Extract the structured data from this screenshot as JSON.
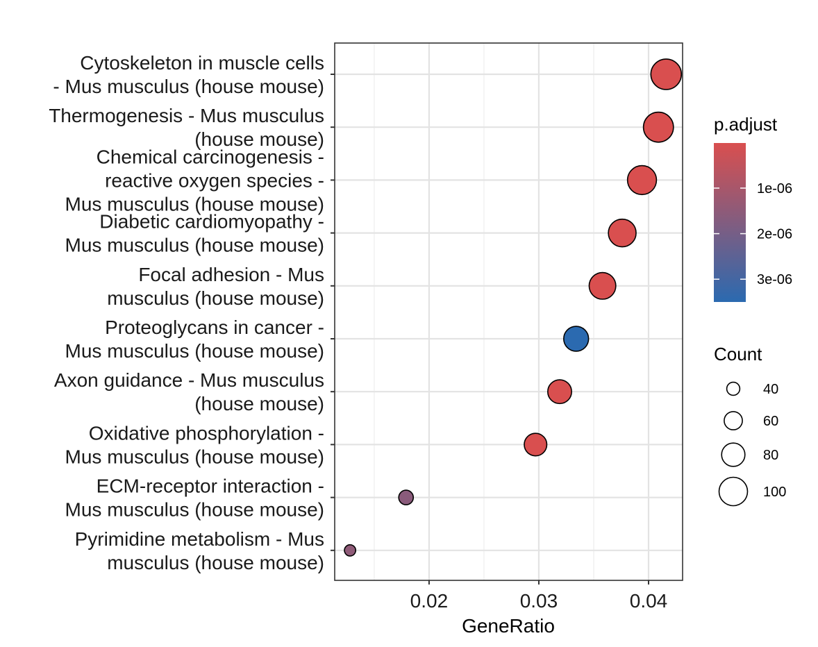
{
  "chart_data": {
    "type": "scatter",
    "xlabel": "GeneRatio",
    "xlim": [
      0.0114,
      0.0431
    ],
    "x_ticks": [
      "0.02",
      "0.03",
      "0.04"
    ],
    "grid": true,
    "legend_position": "right",
    "points": [
      {
        "term": [
          "Cytoskeleton in muscle cells",
          "- Mus musculus (house mouse)"
        ],
        "gene_ratio": 0.0416,
        "count": 108,
        "p_adjust": 1e-08
      },
      {
        "term": [
          "Thermogenesis - Mus musculus",
          "(house mouse)"
        ],
        "gene_ratio": 0.0409,
        "count": 106,
        "p_adjust": 1e-08
      },
      {
        "term": [
          "Chemical carcinogenesis -",
          "reactive oxygen species -",
          "Mus musculus (house mouse)"
        ],
        "gene_ratio": 0.0394,
        "count": 102,
        "p_adjust": 1e-08
      },
      {
        "term": [
          "Diabetic cardiomyopathy -",
          "Mus musculus (house mouse)"
        ],
        "gene_ratio": 0.0376,
        "count": 97,
        "p_adjust": 1e-08
      },
      {
        "term": [
          "Focal adhesion - Mus",
          "musculus (house mouse)"
        ],
        "gene_ratio": 0.0358,
        "count": 93,
        "p_adjust": 1e-08
      },
      {
        "term": [
          "Proteoglycans in cancer -",
          "Mus musculus (house mouse)"
        ],
        "gene_ratio": 0.0334,
        "count": 86,
        "p_adjust": 3.5e-06
      },
      {
        "term": [
          "Axon guidance - Mus musculus",
          "(house mouse)"
        ],
        "gene_ratio": 0.0319,
        "count": 82,
        "p_adjust": 1e-08
      },
      {
        "term": [
          "Oxidative phosphorylation -",
          "Mus musculus (house mouse)"
        ],
        "gene_ratio": 0.0297,
        "count": 77,
        "p_adjust": 1e-08
      },
      {
        "term": [
          "ECM-receptor interaction -",
          "Mus musculus (house mouse)"
        ],
        "gene_ratio": 0.0179,
        "count": 46,
        "p_adjust": 1.6e-06
      },
      {
        "term": [
          "Pyrimidine metabolism - Mus",
          "musculus (house mouse)"
        ],
        "gene_ratio": 0.0128,
        "count": 33,
        "p_adjust": 1.5e-06
      }
    ],
    "color_legend": {
      "title": "p.adjust",
      "low_color": "#D94F4F",
      "high_color": "#2B6AB0",
      "range": [
        1e-08,
        3.5e-06
      ],
      "ticks": [
        {
          "label": "1e-06",
          "value": 1e-06
        },
        {
          "label": "2e-06",
          "value": 2e-06
        },
        {
          "label": "3e-06",
          "value": 3e-06
        }
      ]
    },
    "size_legend": {
      "title": "Count",
      "entries": [
        {
          "label": "40",
          "value": 40
        },
        {
          "label": "60",
          "value": 60
        },
        {
          "label": "80",
          "value": 80
        },
        {
          "label": "100",
          "value": 100
        }
      ]
    }
  }
}
